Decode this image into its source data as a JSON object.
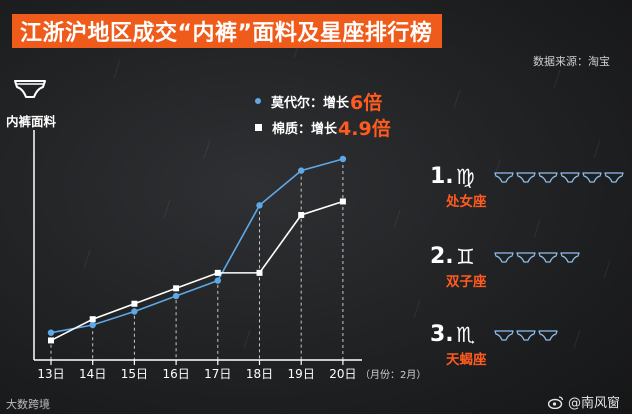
{
  "title": "江浙沪地区成交“内裤”面料及星座排行榜",
  "source": "数据来源：淘宝",
  "legend": {
    "sep": "：",
    "growth_word": "增长",
    "items": [
      {
        "name": "莫代尔",
        "value": "6倍",
        "marker": "dot"
      },
      {
        "name": "棉质",
        "value": "4.9倍",
        "marker": "square"
      }
    ]
  },
  "ranking": [
    {
      "num": "1.",
      "glyph": "♍",
      "name": "处女座",
      "icons": 6
    },
    {
      "num": "2.",
      "glyph": "♊",
      "name": "双子座",
      "icons": 4
    },
    {
      "num": "3.",
      "glyph": "♏",
      "name": "天蝎座",
      "icons": 3
    }
  ],
  "watermark_left": "大数跨境",
  "watermark_right": "@南风窗",
  "colors": {
    "modal": "#5ea8e8",
    "cotton": "#ffffff",
    "accent": "#ff5a1f",
    "title_bg": "#ee5b1b"
  },
  "chart_data": {
    "type": "line",
    "ylabel": "内裤面料",
    "x_unit": "（月份：2月）",
    "categories": [
      "13日",
      "14日",
      "15日",
      "16日",
      "17日",
      "18日",
      "19日",
      "20日"
    ],
    "ylim": [
      0,
      100
    ],
    "grid": false,
    "series": [
      {
        "name": "莫代尔",
        "marker": "dot",
        "values": [
          10,
          14,
          21,
          29,
          37,
          76,
          94,
          100
        ]
      },
      {
        "name": "棉质",
        "marker": "square",
        "values": [
          6,
          17,
          25,
          33,
          41,
          41,
          71,
          78
        ]
      }
    ]
  }
}
